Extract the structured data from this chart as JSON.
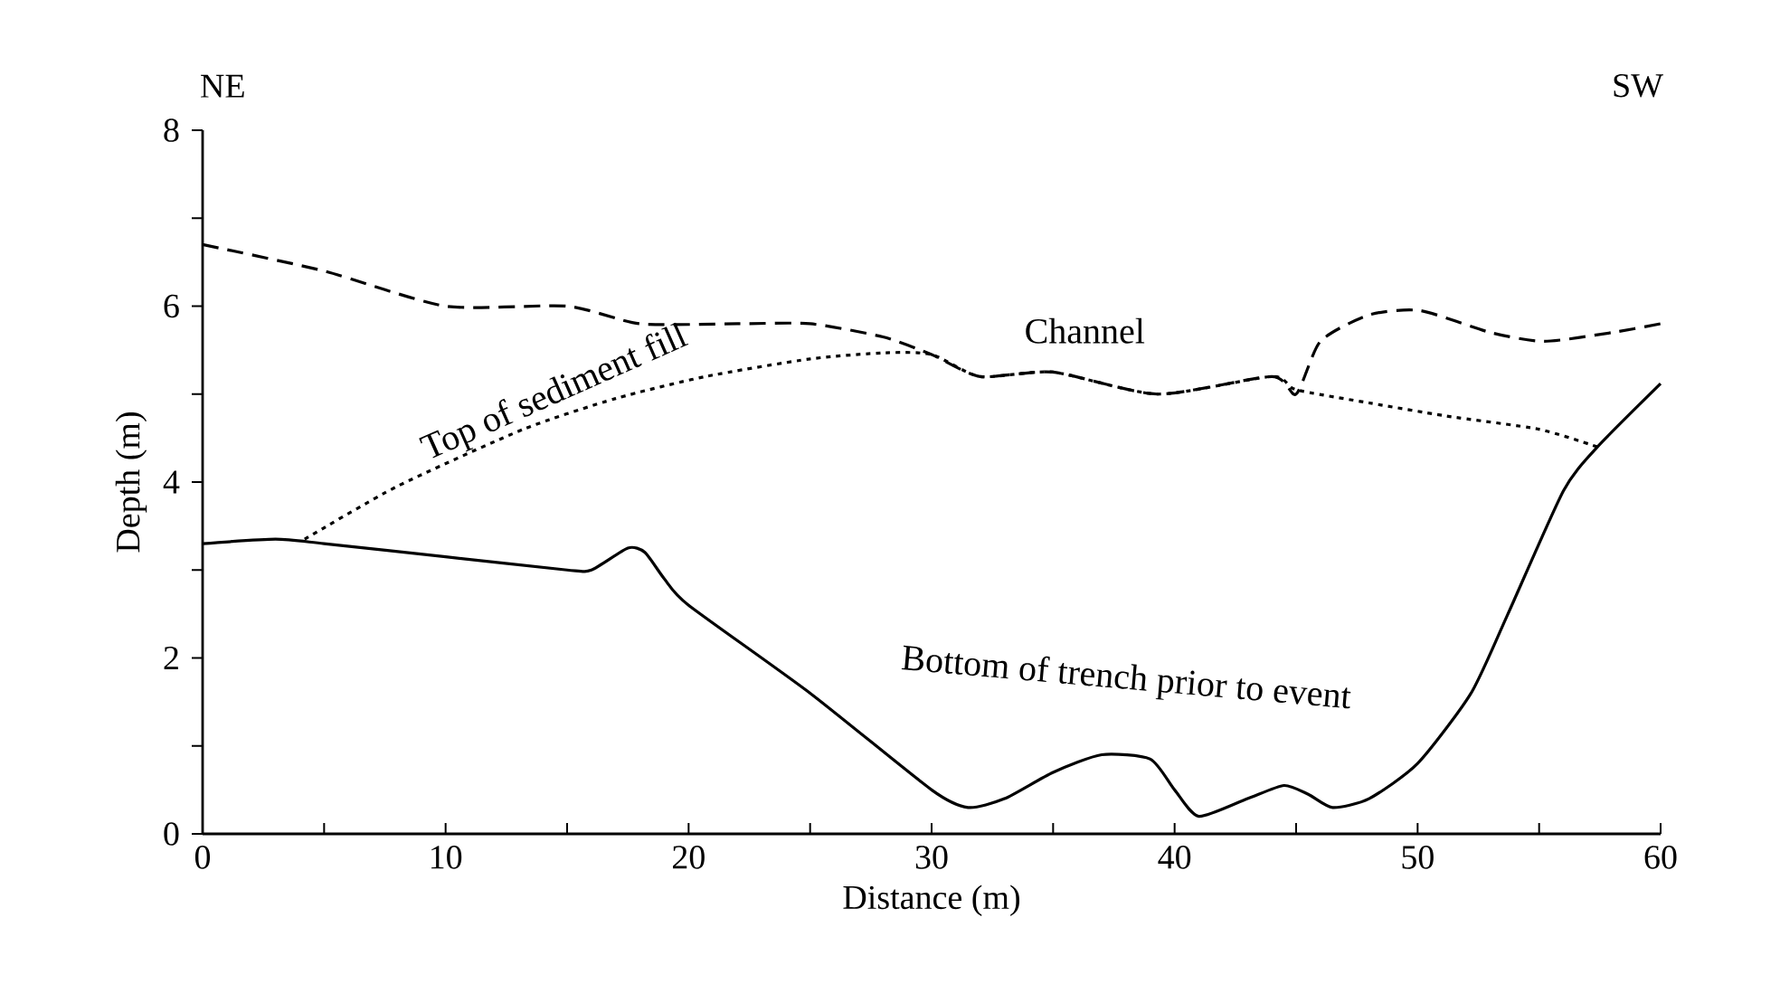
{
  "chart_data": {
    "type": "line",
    "xlabel": "Distance (m)",
    "ylabel": "Depth (m)",
    "annotations": [
      "NE",
      "SW"
    ],
    "xlim": [
      0,
      60
    ],
    "ylim": [
      0,
      8
    ],
    "xticks": [
      0,
      {
        "value": 5,
        "label": null
      },
      10,
      {
        "value": 15,
        "label": null
      },
      20,
      {
        "value": 25,
        "label": null
      },
      30,
      {
        "value": 35,
        "label": null
      },
      40,
      {
        "value": 45,
        "label": null
      },
      50,
      {
        "value": 55,
        "label": null
      },
      60
    ],
    "yticks": [
      0,
      {
        "value": 1,
        "label": null
      },
      2,
      {
        "value": 3,
        "label": null
      },
      4,
      {
        "value": 5,
        "label": null
      },
      6,
      {
        "value": 7,
        "label": null
      },
      8
    ],
    "grid": false,
    "legend": false,
    "marker": "none",
    "series": [
      {
        "name": "Channel",
        "color": "#000000",
        "line_style": "dashed",
        "x": [
          0,
          5,
          10,
          15,
          18,
          22,
          25,
          28,
          30,
          32,
          35,
          39.3,
          44,
          45,
          46,
          48,
          50.1,
          53,
          55.2,
          58,
          60
        ],
        "values": [
          6.7,
          6.4,
          6.0,
          6.0,
          5.8,
          5.8,
          5.8,
          5.65,
          5.45,
          5.2,
          5.25,
          5.0,
          5.2,
          5.0,
          5.6,
          5.9,
          5.95,
          5.7,
          5.6,
          5.7,
          5.8
        ]
      },
      {
        "name": "Top of sediment fill",
        "color": "#000000",
        "line_style": "dotted",
        "x": [
          4.2,
          8,
          13.2,
          17,
          20.7,
          25,
          28.1,
          30,
          32,
          35,
          39.3,
          44,
          45,
          48,
          51.2,
          55,
          57.4
        ],
        "values": [
          3.35,
          3.95,
          4.6,
          4.95,
          5.2,
          5.4,
          5.47,
          5.45,
          5.2,
          5.25,
          5.0,
          5.2,
          5.05,
          4.9,
          4.75,
          4.6,
          4.4
        ]
      },
      {
        "name": "Bottom of trench prior to event",
        "color": "#000000",
        "line_style": "solid",
        "x": [
          0,
          3,
          5,
          10,
          15,
          16,
          17.5,
          18.2,
          19,
          20,
          25,
          30,
          31.5,
          33,
          35,
          37,
          39,
          40,
          41,
          43,
          44.5,
          45.5,
          46.5,
          48,
          50,
          52.2,
          53.7,
          56,
          57.4,
          60
        ],
        "values": [
          3.3,
          3.35,
          3.3,
          3.15,
          3.0,
          3.0,
          3.25,
          3.2,
          2.9,
          2.6,
          1.6,
          0.5,
          0.3,
          0.4,
          0.7,
          0.9,
          0.85,
          0.5,
          0.2,
          0.4,
          0.55,
          0.45,
          0.3,
          0.4,
          0.8,
          1.6,
          2.49,
          3.9,
          4.4,
          5.12
        ]
      }
    ]
  }
}
